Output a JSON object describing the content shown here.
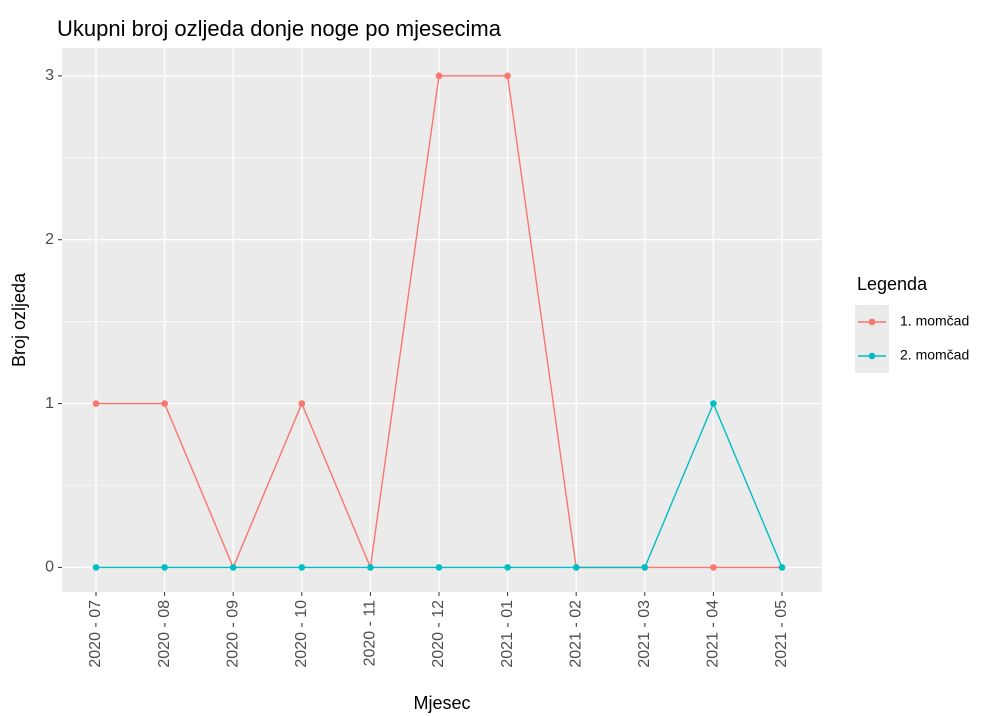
{
  "chart_data": {
    "type": "line",
    "title": "Ukupni broj ozljeda donje noge po mjesecima",
    "x_label": "Mjesec",
    "y_label": "Broj ozljeda",
    "legend_title": "Legenda",
    "categories": [
      "2020 - 07",
      "2020 - 08",
      "2020 - 09",
      "2020 - 10",
      "2020 - 11",
      "2020 - 12",
      "2021 - 01",
      "2021 - 02",
      "2021 - 03",
      "2021 - 04",
      "2021 - 05"
    ],
    "series": [
      {
        "name": "1. momčad",
        "color": "#F8766D",
        "values": [
          1,
          1,
          0,
          1,
          0,
          3,
          3,
          0,
          0,
          0,
          0
        ]
      },
      {
        "name": "2. momčad",
        "color": "#00BFC4",
        "values": [
          0,
          0,
          0,
          0,
          0,
          0,
          0,
          0,
          0,
          1,
          0
        ]
      }
    ],
    "ylim": [
      -0.15,
      3.17
    ],
    "yticks": [
      0,
      1,
      2,
      3
    ],
    "grid": true,
    "legend": "right"
  }
}
